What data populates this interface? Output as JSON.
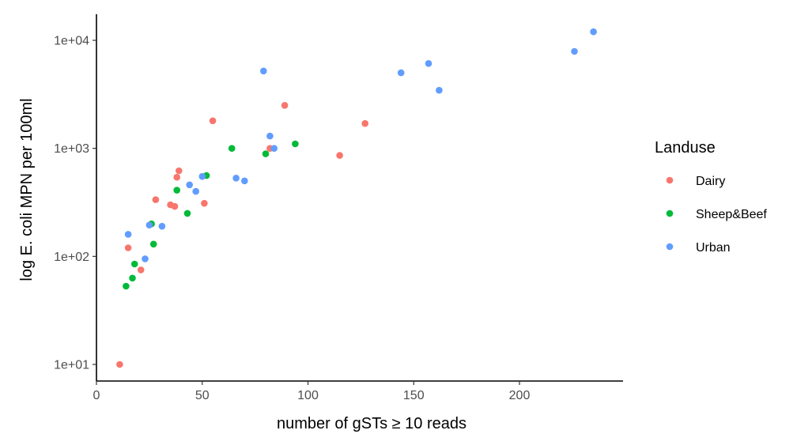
{
  "chart_data": {
    "type": "scatter",
    "xlabel": "number of gSTs ≥ 10 reads",
    "ylabel": "log E. coli MPN per 100ml",
    "xlim": [
      0,
      245
    ],
    "ylim": [
      7,
      16000
    ],
    "y_scale": "log",
    "x_ticks": [
      0,
      50,
      100,
      150,
      200
    ],
    "x_tick_labels": [
      "0",
      "50",
      "100",
      "150",
      "200"
    ],
    "y_ticks": [
      10,
      100,
      1000,
      10000
    ],
    "y_tick_labels": [
      "1e+01",
      "1e+02",
      "1e+03",
      "1e+04"
    ],
    "grid": false,
    "legend": {
      "title": "Landuse",
      "placement": "right"
    },
    "series": [
      {
        "name": "Dairy",
        "color": "#F8766D",
        "points": [
          {
            "x": 11,
            "y": 10
          },
          {
            "x": 15,
            "y": 120
          },
          {
            "x": 21,
            "y": 75
          },
          {
            "x": 28,
            "y": 335
          },
          {
            "x": 35,
            "y": 300
          },
          {
            "x": 37,
            "y": 290
          },
          {
            "x": 38,
            "y": 540
          },
          {
            "x": 39,
            "y": 620
          },
          {
            "x": 51,
            "y": 310
          },
          {
            "x": 55,
            "y": 1800
          },
          {
            "x": 82,
            "y": 1000
          },
          {
            "x": 89,
            "y": 2500
          },
          {
            "x": 115,
            "y": 860
          },
          {
            "x": 127,
            "y": 1700
          }
        ]
      },
      {
        "name": "Sheep&Beef",
        "color": "#00BA38",
        "points": [
          {
            "x": 14,
            "y": 53
          },
          {
            "x": 17,
            "y": 63
          },
          {
            "x": 18,
            "y": 85
          },
          {
            "x": 26,
            "y": 200
          },
          {
            "x": 27,
            "y": 130
          },
          {
            "x": 38,
            "y": 410
          },
          {
            "x": 43,
            "y": 250
          },
          {
            "x": 52,
            "y": 560
          },
          {
            "x": 64,
            "y": 1000
          },
          {
            "x": 80,
            "y": 890
          },
          {
            "x": 94,
            "y": 1100
          }
        ]
      },
      {
        "name": "Urban",
        "color": "#619CFF",
        "points": [
          {
            "x": 15,
            "y": 160
          },
          {
            "x": 23,
            "y": 95
          },
          {
            "x": 25,
            "y": 195
          },
          {
            "x": 31,
            "y": 190
          },
          {
            "x": 44,
            "y": 460
          },
          {
            "x": 47,
            "y": 400
          },
          {
            "x": 50,
            "y": 550
          },
          {
            "x": 66,
            "y": 530
          },
          {
            "x": 70,
            "y": 500
          },
          {
            "x": 79,
            "y": 5200
          },
          {
            "x": 82,
            "y": 1300
          },
          {
            "x": 84,
            "y": 1000
          },
          {
            "x": 144,
            "y": 5000
          },
          {
            "x": 157,
            "y": 6100
          },
          {
            "x": 162,
            "y": 3450
          },
          {
            "x": 226,
            "y": 7900
          },
          {
            "x": 235,
            "y": 12000
          }
        ]
      }
    ]
  }
}
